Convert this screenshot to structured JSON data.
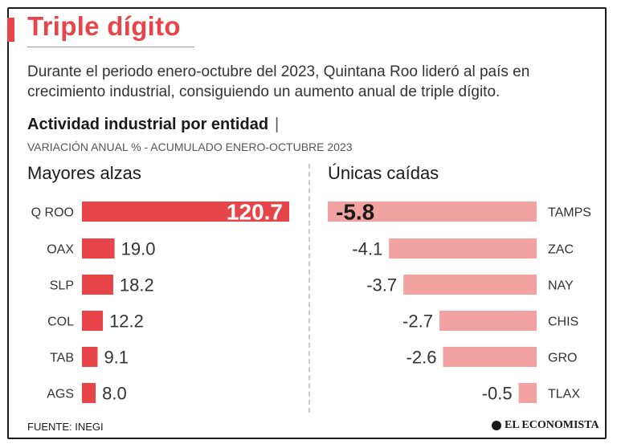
{
  "header": {
    "title": "Triple dígito",
    "intro": "Durante el periodo enero-octubre del 2023, Quintana Roo lideró al país en crecimiento industrial, consiguiendo un aumento anual de triple dígito.",
    "subtitle": "Actividad industrial por entidad",
    "subtitle_separator": "|",
    "axis_note": "VARIACIÓN ANUAL % - ACUMULADO ENERO-OCTUBRE 2023"
  },
  "footer": {
    "source": "FUENTE: INEGI",
    "brand": "EL ECONOMISTA"
  },
  "colors": {
    "accent": "#e8454a",
    "rise_bar": "#e8454a",
    "fall_bar": "#f2a3a1",
    "highlight_text_light": "#ffffff",
    "highlight_text_dark": "#1a1a1a"
  },
  "chart_data": [
    {
      "type": "bar",
      "orientation": "horizontal",
      "title": "Mayores alzas",
      "categories": [
        "Q ROO",
        "OAX",
        "SLP",
        "COL",
        "TAB",
        "AGS"
      ],
      "values": [
        120.7,
        19.0,
        18.2,
        12.2,
        9.1,
        8.0
      ],
      "labels": [
        "120.7",
        "19.0",
        "18.2",
        "12.2",
        "9.1",
        "8.0"
      ],
      "highlight_index": 0,
      "xlim": [
        0,
        120.7
      ]
    },
    {
      "type": "bar",
      "orientation": "horizontal",
      "title": "Únicas caídas",
      "categories": [
        "TAMPS",
        "ZAC",
        "NAY",
        "CHIS",
        "GRO",
        "TLAX"
      ],
      "values": [
        -5.8,
        -4.1,
        -3.7,
        -2.7,
        -2.6,
        -0.5
      ],
      "labels": [
        "-5.8",
        "-4.1",
        "-3.7",
        "-2.7",
        "-2.6",
        "-0.5"
      ],
      "highlight_index": 0,
      "xlim": [
        -5.8,
        0
      ]
    }
  ]
}
